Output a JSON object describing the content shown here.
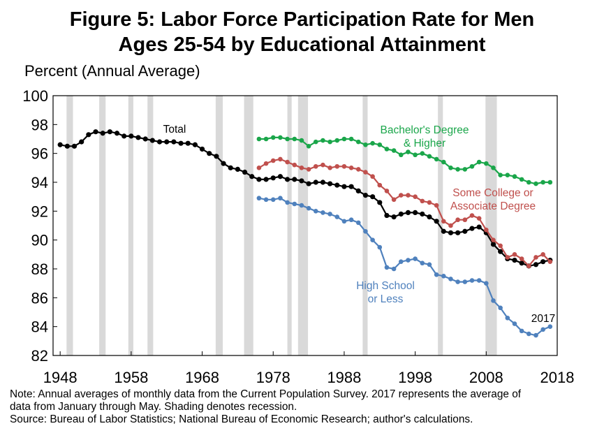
{
  "chart_data": {
    "type": "line",
    "title_line1": "Figure 5: Labor Force Participation Rate for Men",
    "title_line2": "Ages 25-54 by Educational Attainment",
    "ylabel": "Percent (Annual Average)",
    "xlabel": "",
    "xlim": [
      1947,
      2018
    ],
    "ylim": [
      82,
      100
    ],
    "x_ticks": [
      1948,
      1958,
      1968,
      1978,
      1988,
      1998,
      2008,
      2018
    ],
    "y_ticks": [
      82,
      84,
      86,
      88,
      90,
      92,
      94,
      96,
      98,
      100
    ],
    "grid": false,
    "recessions": [
      [
        1948.9,
        1949.8
      ],
      [
        1953.5,
        1954.4
      ],
      [
        1957.6,
        1958.3
      ],
      [
        1960.3,
        1961.1
      ],
      [
        1969.9,
        1970.9
      ],
      [
        1973.9,
        1975.2
      ],
      [
        1980.0,
        1980.6
      ],
      [
        1981.5,
        1982.9
      ],
      [
        1990.6,
        1991.3
      ],
      [
        2001.2,
        2001.9
      ],
      [
        2007.9,
        2009.5
      ]
    ],
    "series": [
      {
        "name": "Total",
        "label_lines": [
          "Total"
        ],
        "color": "#000000",
        "x": [
          1948,
          1949,
          1950,
          1951,
          1952,
          1953,
          1954,
          1955,
          1956,
          1957,
          1958,
          1959,
          1960,
          1961,
          1962,
          1963,
          1964,
          1965,
          1966,
          1967,
          1968,
          1969,
          1970,
          1971,
          1972,
          1973,
          1974,
          1975,
          1976,
          1977,
          1978,
          1979,
          1980,
          1981,
          1982,
          1983,
          1984,
          1985,
          1986,
          1987,
          1988,
          1989,
          1990,
          1991,
          1992,
          1993,
          1994,
          1995,
          1996,
          1997,
          1998,
          1999,
          2000,
          2001,
          2002,
          2003,
          2004,
          2005,
          2006,
          2007,
          2008,
          2009,
          2010,
          2011,
          2012,
          2013,
          2014,
          2015,
          2016,
          2017
        ],
        "y": [
          96.6,
          96.5,
          96.5,
          96.8,
          97.3,
          97.5,
          97.4,
          97.5,
          97.4,
          97.2,
          97.2,
          97.1,
          97.0,
          96.9,
          96.8,
          96.8,
          96.8,
          96.7,
          96.7,
          96.6,
          96.3,
          96.0,
          95.8,
          95.3,
          95.0,
          94.9,
          94.7,
          94.4,
          94.2,
          94.2,
          94.3,
          94.4,
          94.2,
          94.2,
          94.1,
          93.9,
          94.0,
          94.0,
          93.9,
          93.8,
          93.7,
          93.7,
          93.4,
          93.1,
          93.0,
          92.6,
          91.7,
          91.6,
          91.8,
          91.9,
          91.9,
          91.8,
          91.6,
          91.3,
          90.6,
          90.5,
          90.5,
          90.6,
          90.8,
          90.9,
          90.5,
          89.7,
          89.2,
          88.7,
          88.6,
          88.4,
          88.2,
          88.3,
          88.5,
          88.6
        ]
      },
      {
        "name": "Bachelor's Degree & Higher",
        "label_lines": [
          "Bachelor's Degree",
          "& Higher"
        ],
        "color": "#1aa64a",
        "x": [
          1976,
          1977,
          1978,
          1979,
          1980,
          1981,
          1982,
          1983,
          1984,
          1985,
          1986,
          1987,
          1988,
          1989,
          1990,
          1991,
          1992,
          1993,
          1994,
          1995,
          1996,
          1997,
          1998,
          1999,
          2000,
          2001,
          2002,
          2003,
          2004,
          2005,
          2006,
          2007,
          2008,
          2009,
          2010,
          2011,
          2012,
          2013,
          2014,
          2015,
          2016,
          2017
        ],
        "y": [
          97.0,
          97.0,
          97.1,
          97.1,
          97.0,
          97.0,
          96.9,
          96.5,
          96.8,
          96.9,
          96.8,
          96.9,
          97.0,
          97.0,
          96.8,
          96.6,
          96.7,
          96.6,
          96.3,
          96.2,
          95.9,
          96.1,
          95.9,
          96.0,
          95.8,
          95.6,
          95.4,
          95.0,
          94.9,
          94.9,
          95.1,
          95.4,
          95.3,
          95.0,
          94.5,
          94.5,
          94.4,
          94.2,
          94.0,
          93.9,
          94.0,
          94.0
        ]
      },
      {
        "name": "Some College or Associate Degree",
        "label_lines": [
          "Some College or",
          "Associate Degree"
        ],
        "color": "#c0504d",
        "x": [
          1976,
          1977,
          1978,
          1979,
          1980,
          1981,
          1982,
          1983,
          1984,
          1985,
          1986,
          1987,
          1988,
          1989,
          1990,
          1991,
          1992,
          1993,
          1994,
          1995,
          1996,
          1997,
          1998,
          1999,
          2000,
          2001,
          2002,
          2003,
          2004,
          2005,
          2006,
          2007,
          2008,
          2009,
          2010,
          2011,
          2012,
          2013,
          2014,
          2015,
          2016,
          2017
        ],
        "y": [
          95.0,
          95.3,
          95.5,
          95.6,
          95.4,
          95.2,
          95.0,
          94.9,
          95.1,
          95.2,
          95.0,
          95.1,
          95.1,
          95.0,
          94.9,
          94.7,
          94.4,
          93.8,
          93.4,
          92.8,
          93.1,
          93.1,
          93.0,
          92.7,
          92.6,
          92.4,
          91.3,
          91.0,
          91.4,
          91.4,
          91.7,
          91.5,
          90.7,
          90.0,
          89.6,
          88.8,
          89.0,
          88.7,
          88.2,
          88.8,
          89.0,
          88.5
        ]
      },
      {
        "name": "High School or Less",
        "label_lines": [
          "High School",
          "or Less"
        ],
        "color": "#4f81bd",
        "x": [
          1976,
          1977,
          1978,
          1979,
          1980,
          1981,
          1982,
          1983,
          1984,
          1985,
          1986,
          1987,
          1988,
          1989,
          1990,
          1991,
          1992,
          1993,
          1994,
          1995,
          1996,
          1997,
          1998,
          1999,
          2000,
          2001,
          2002,
          2003,
          2004,
          2005,
          2006,
          2007,
          2008,
          2009,
          2010,
          2011,
          2012,
          2013,
          2014,
          2015,
          2016,
          2017
        ],
        "y": [
          92.9,
          92.8,
          92.8,
          92.9,
          92.6,
          92.5,
          92.4,
          92.2,
          92.0,
          91.9,
          91.8,
          91.6,
          91.3,
          91.4,
          91.2,
          90.6,
          90.0,
          89.5,
          88.1,
          88.0,
          88.5,
          88.6,
          88.7,
          88.4,
          88.3,
          87.6,
          87.5,
          87.3,
          87.1,
          87.1,
          87.2,
          87.2,
          87.0,
          85.8,
          85.3,
          84.6,
          84.2,
          83.7,
          83.5,
          83.4,
          83.8,
          84.0
        ]
      }
    ],
    "annotations": [
      {
        "text": "2017"
      }
    ]
  },
  "notes": {
    "line1": "Note: Annual averages of monthly data from the Current Population Survey. 2017 represents the average of",
    "line2": "data from January through May. Shading denotes recession.",
    "line3": "Source: Bureau of Labor Statistics; National Bureau of Economic Research; author's calculations."
  }
}
